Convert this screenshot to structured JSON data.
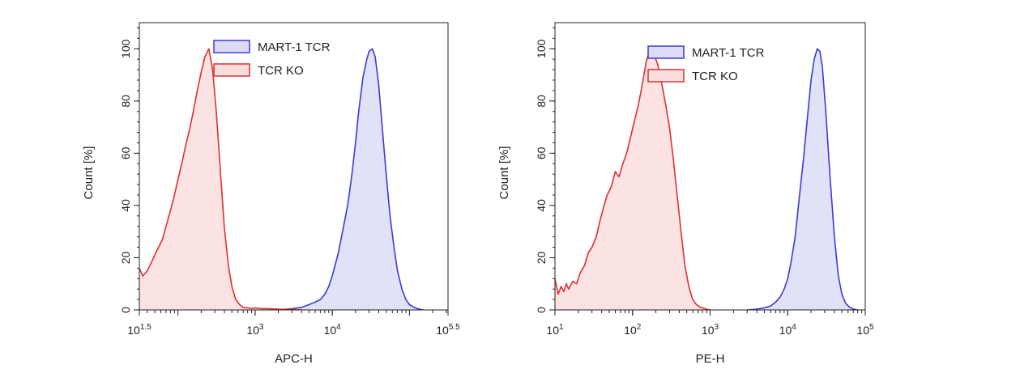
{
  "chart_data": [
    {
      "type": "area",
      "xlabel": "APC-H",
      "ylabel": "Count [%]",
      "x_scale": "log10",
      "xlim": [
        31.6,
        316228
      ],
      "ylim": [
        0,
        110
      ],
      "grid": false,
      "legend_placement": "top-center",
      "x_ticks": [
        {
          "value": 31.6,
          "base": "10",
          "exp": "1.5"
        },
        {
          "value": 1000,
          "base": "10",
          "exp": "3"
        },
        {
          "value": 10000,
          "base": "10",
          "exp": "4"
        },
        {
          "value": 316228,
          "base": "10",
          "exp": "5.5"
        }
      ],
      "y_ticks": [
        0,
        20,
        40,
        60,
        80,
        100
      ],
      "series": [
        {
          "name": "MART-1 TCR",
          "color": "#3b3bd6",
          "fill": "#dcdcf6",
          "x": [
            2000,
            3000,
            4000,
            5000,
            6000,
            7000,
            8000,
            9000,
            10000,
            12000,
            14000,
            16000,
            18000,
            20000,
            22000,
            25000,
            28000,
            30000,
            33000,
            36000,
            40000,
            45000,
            50000,
            56000,
            63000,
            70000,
            80000,
            90000,
            100000,
            115000,
            130000,
            150000
          ],
          "values": [
            0,
            0.5,
            1,
            2,
            3,
            4,
            6,
            9,
            13,
            22,
            32,
            41,
            52,
            64,
            76,
            89,
            96,
            99,
            100,
            97,
            86,
            68,
            52,
            36,
            24,
            15,
            8,
            4,
            2,
            1,
            0.4,
            0
          ]
        },
        {
          "name": "TCR KO",
          "color": "#e03030",
          "fill": "#fadede",
          "x": [
            31.6,
            35,
            40,
            45,
            50,
            56,
            63,
            70,
            80,
            90,
            100,
            112,
            126,
            141,
            158,
            178,
            200,
            224,
            251,
            282,
            316,
            355,
            398,
            450,
            500,
            560,
            630,
            700,
            800,
            900,
            1000,
            1200,
            1500,
            2000,
            3000,
            4000
          ],
          "values": [
            16,
            13,
            15,
            18,
            21,
            24,
            27,
            32,
            38,
            44,
            50,
            56,
            63,
            69,
            76,
            84,
            91,
            97,
            100,
            92,
            75,
            53,
            32,
            17,
            9,
            4,
            2,
            1,
            0.8,
            0.5,
            0.8,
            0.5,
            0.5,
            0.3,
            0.2,
            0
          ]
        }
      ]
    },
    {
      "type": "area",
      "xlabel": "PE-H",
      "ylabel": "Count [%]",
      "x_scale": "log10",
      "xlim": [
        10,
        100000
      ],
      "ylim": [
        0,
        110
      ],
      "grid": false,
      "legend_placement": "top-right",
      "x_ticks": [
        {
          "value": 10,
          "base": "10",
          "exp": "1"
        },
        {
          "value": 100,
          "base": "10",
          "exp": "2"
        },
        {
          "value": 1000,
          "base": "10",
          "exp": "3"
        },
        {
          "value": 10000,
          "base": "10",
          "exp": "4"
        },
        {
          "value": 100000,
          "base": "10",
          "exp": "5"
        }
      ],
      "y_ticks": [
        0,
        20,
        40,
        60,
        80,
        100
      ],
      "series": [
        {
          "name": "MART-1 TCR",
          "color": "#3b3bd6",
          "fill": "#dcdcf6",
          "x": [
            3000,
            4000,
            5000,
            6000,
            7000,
            8000,
            9000,
            10000,
            11000,
            12500,
            14000,
            16000,
            18000,
            20000,
            22000,
            24000,
            26000,
            28000,
            31000,
            35000,
            40000,
            45000,
            50000,
            56000,
            63000,
            70000,
            80000
          ],
          "values": [
            0,
            0.3,
            0.8,
            1.5,
            3,
            5,
            8,
            12,
            18,
            28,
            42,
            58,
            74,
            88,
            96,
            100,
            99,
            93,
            76,
            52,
            28,
            13,
            6,
            2.5,
            1,
            0.3,
            0
          ]
        },
        {
          "name": "TCR KO",
          "color": "#e03030",
          "fill": "#fadede",
          "x": [
            10,
            11,
            12,
            13,
            14,
            15,
            17,
            19,
            21,
            24,
            27,
            30,
            34,
            38,
            42,
            47,
            53,
            60,
            67,
            75,
            84,
            94,
            105,
            118,
            133,
            150,
            168,
            188,
            211,
            237,
            266,
            300,
            335,
            376,
            422,
            473,
            531,
            596,
            668,
            750,
            900,
            1000
          ],
          "values": [
            12,
            6,
            9,
            7,
            10,
            8,
            11,
            10,
            14,
            17,
            22,
            24,
            28,
            34,
            39,
            44,
            47,
            53,
            51,
            56,
            60,
            66,
            72,
            78,
            86,
            95,
            100,
            98,
            94,
            87,
            79,
            70,
            58,
            44,
            30,
            17,
            9,
            4,
            2,
            1,
            0.3,
            0
          ]
        }
      ]
    }
  ]
}
